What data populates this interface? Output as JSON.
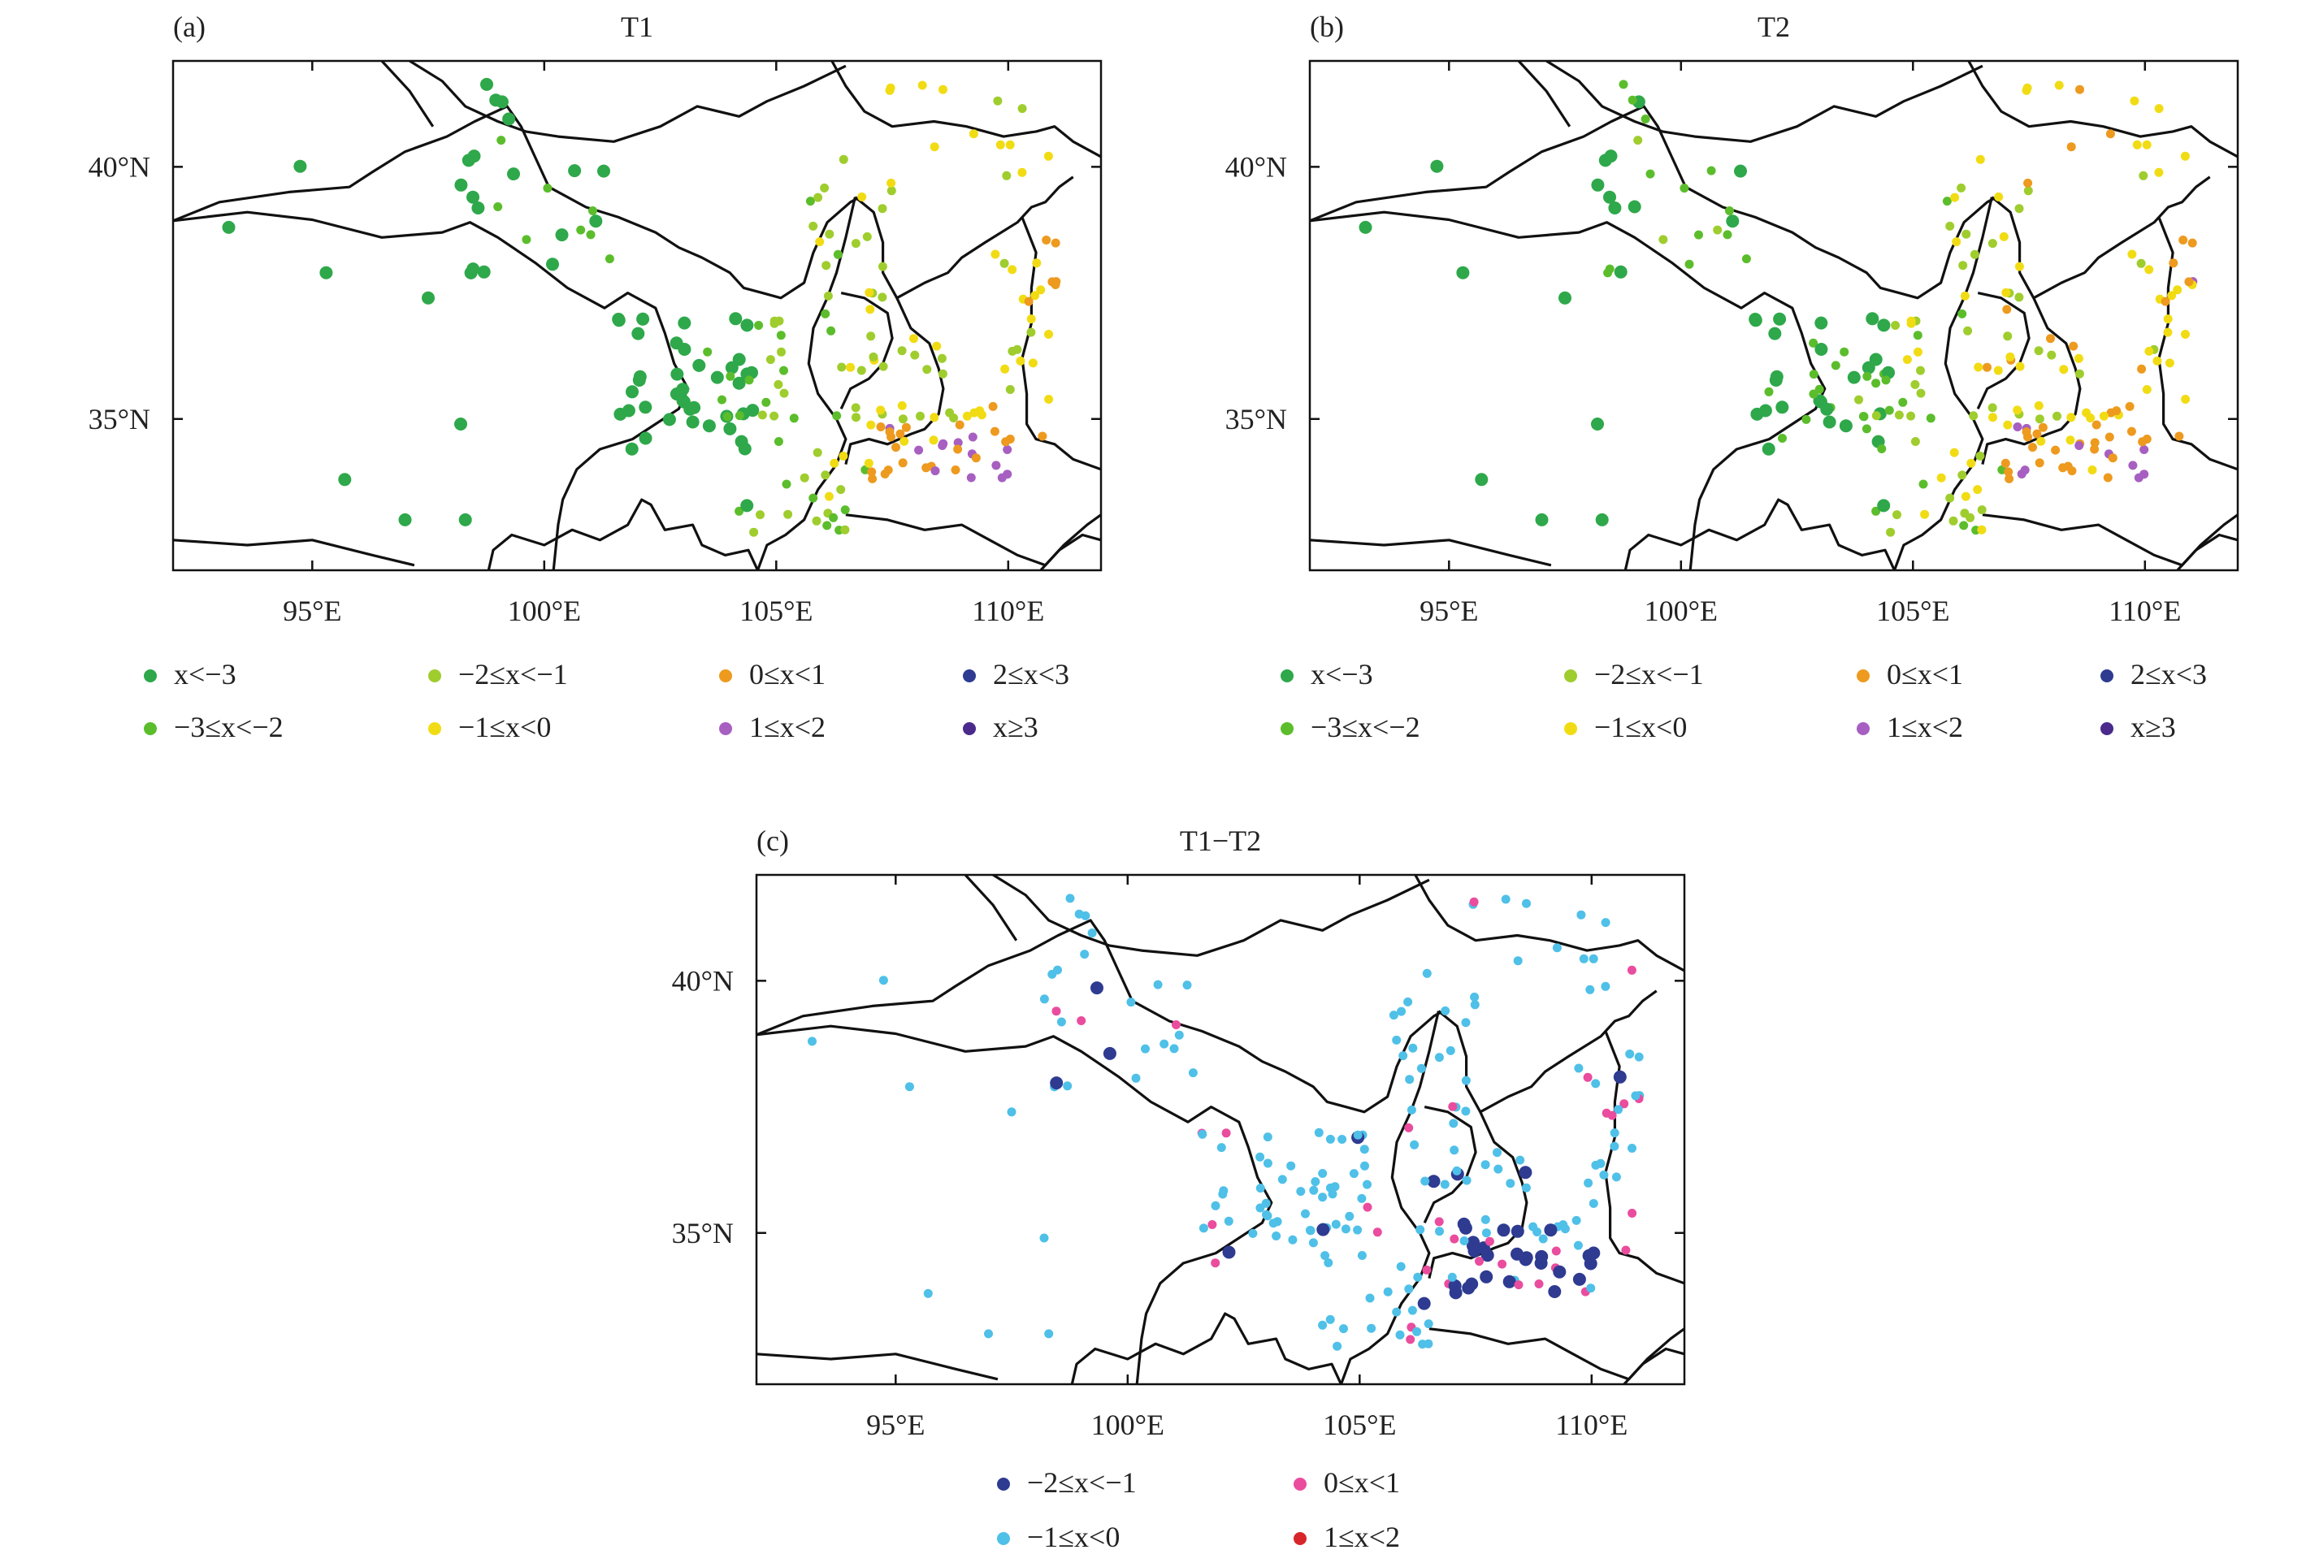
{
  "figure": {
    "panels": [
      {
        "label": "(a)",
        "title": "T1",
        "x_ticks": [
          "95°E",
          "100°E",
          "105°E",
          "110°E"
        ],
        "y_ticks": [
          "40°N",
          "35°N"
        ],
        "legend": [
          {
            "label": "x<−3",
            "color": "#2ea84a"
          },
          {
            "label": "−3≤x<−2",
            "color": "#5bbd2b"
          },
          {
            "label": "−2≤x<−1",
            "color": "#9fcd2e"
          },
          {
            "label": "−1≤x<0",
            "color": "#f1dc14"
          },
          {
            "label": "0≤x<1",
            "color": "#ed9a1f"
          },
          {
            "label": "1≤x<2",
            "color": "#a75fc1"
          },
          {
            "label": "2≤x<3",
            "color": "#2e3b91"
          },
          {
            "label": "x≥3",
            "color": "#4a2a8c"
          }
        ]
      },
      {
        "label": "(b)",
        "title": "T2",
        "x_ticks": [
          "95°E",
          "100°E",
          "105°E",
          "110°E"
        ],
        "y_ticks": [
          "40°N",
          "35°N"
        ],
        "legend": [
          {
            "label": "x<−3",
            "color": "#2ea84a"
          },
          {
            "label": "−3≤x<−2",
            "color": "#5bbd2b"
          },
          {
            "label": "−2≤x<−1",
            "color": "#9fcd2e"
          },
          {
            "label": "−1≤x<0",
            "color": "#f1dc14"
          },
          {
            "label": "0≤x<1",
            "color": "#ed9a1f"
          },
          {
            "label": "1≤x<2",
            "color": "#a75fc1"
          },
          {
            "label": "2≤x<3",
            "color": "#2e3b91"
          },
          {
            "label": "x≥3",
            "color": "#4a2a8c"
          }
        ]
      },
      {
        "label": "(c)",
        "title": "T1−T2",
        "x_ticks": [
          "95°E",
          "100°E",
          "105°E",
          "110°E"
        ],
        "y_ticks": [
          "40°N",
          "35°N"
        ],
        "legend": [
          {
            "label": "−2≤x<−1",
            "color": "#2e3b91"
          },
          {
            "label": "−1≤x<0",
            "color": "#4fc0e8"
          },
          {
            "label": "0≤x<1",
            "color": "#ea4c9e"
          },
          {
            "label": "1≤x<2",
            "color": "#d7262b"
          }
        ]
      }
    ]
  }
}
